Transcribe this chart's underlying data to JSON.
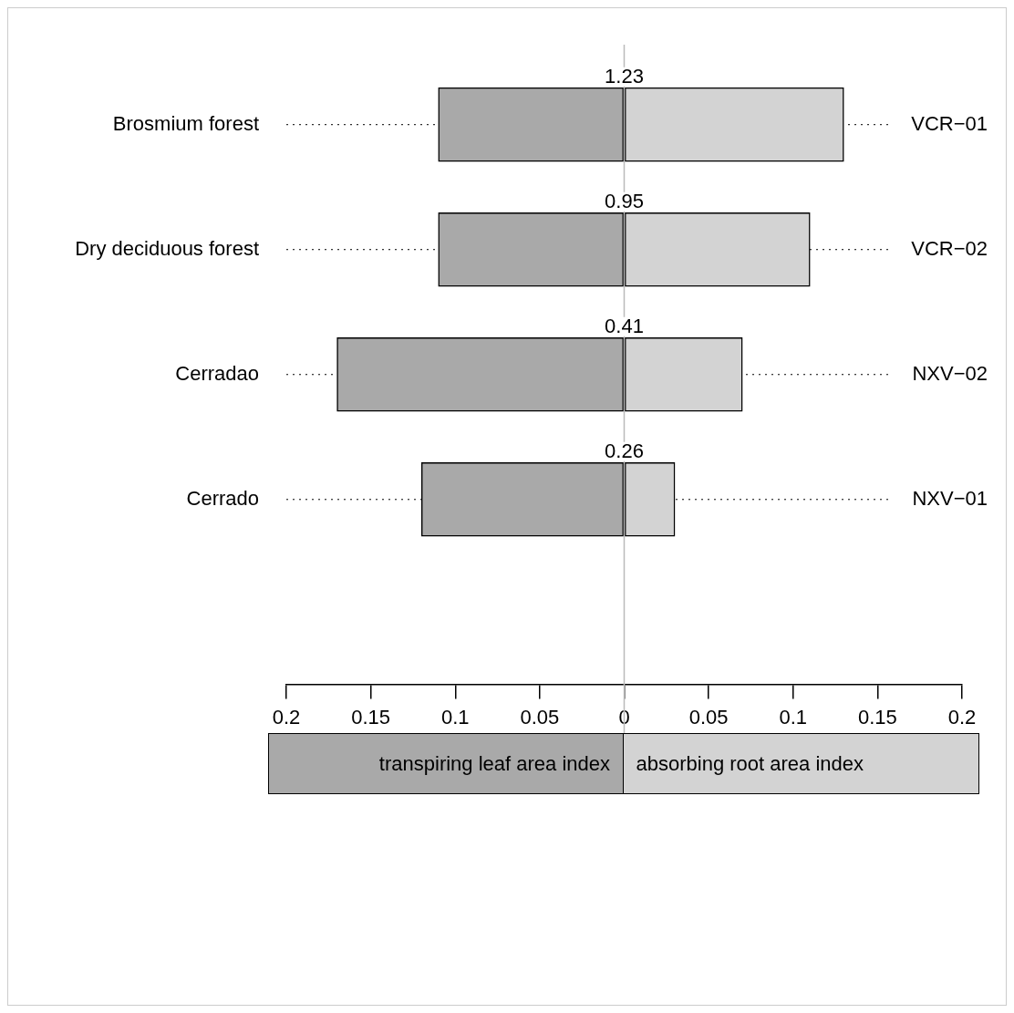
{
  "chart_data": {
    "type": "bar",
    "orientation": "horizontal",
    "stacked": true,
    "categories": [
      "Brosmium forest",
      "Dry deciduous forest",
      "Cerradao",
      "Cerrado"
    ],
    "series": [
      {
        "name": "transpiring leaf area index",
        "color": "#a9a9a9",
        "values": [
          -0.11,
          -0.11,
          -0.17,
          -0.12
        ]
      },
      {
        "name": "absorbing root area index",
        "color": "#d3d3d3",
        "values": [
          0.13,
          0.11,
          0.07,
          0.03
        ]
      }
    ],
    "xlim": [
      -0.2,
      0.2
    ],
    "xticks": [
      {
        "value": -0.2,
        "label": "0.2"
      },
      {
        "value": -0.15,
        "label": "0.15"
      },
      {
        "value": -0.1,
        "label": "0.1"
      },
      {
        "value": -0.05,
        "label": "0.05"
      },
      0,
      0.05,
      0.1,
      0.15,
      0.2
    ],
    "annotations": [
      "1.23",
      "0.95",
      "0.41",
      "0.26",
      "VCR−01",
      "VCR−02",
      "NXV−02",
      "NXV−01"
    ],
    "ref_lines": [
      {
        "axis": "x",
        "value": 0,
        "color": "#bbbbbb"
      }
    ],
    "grid": "y",
    "line_style": "dotted",
    "legend": "bottom"
  }
}
